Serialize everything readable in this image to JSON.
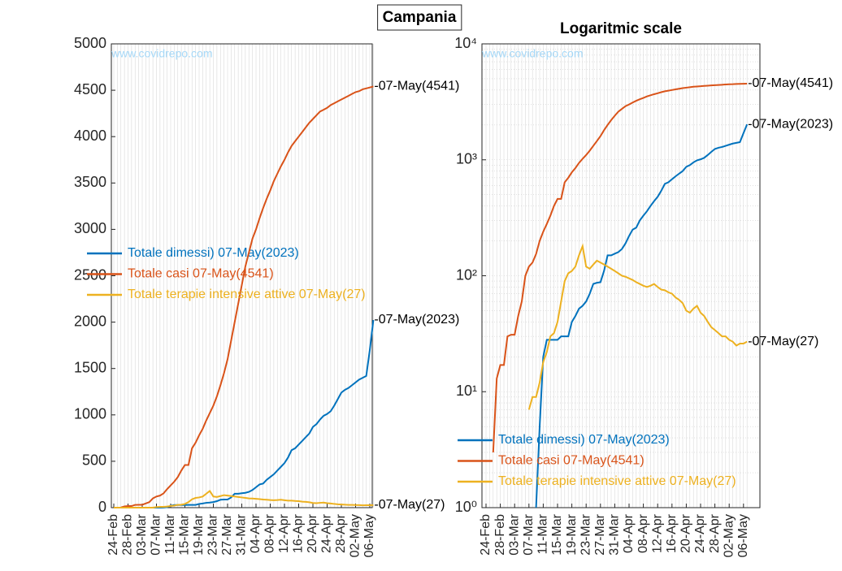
{
  "chart_data": [
    {
      "type": "line",
      "title": "Campania",
      "watermark": "www.covidrepo.com",
      "yscale": "linear",
      "legend": "center-left",
      "grid": true,
      "categories": [
        "24-Feb",
        null,
        null,
        null,
        "28-Feb",
        null,
        null,
        null,
        "03-Mar",
        null,
        null,
        null,
        "07-Mar",
        null,
        null,
        null,
        "11-Mar",
        null,
        null,
        null,
        "15-Mar",
        null,
        null,
        null,
        "19-Mar",
        null,
        null,
        null,
        "23-Mar",
        null,
        null,
        null,
        "27-Mar",
        null,
        null,
        null,
        "31-Mar",
        null,
        null,
        null,
        "04-Apr",
        null,
        null,
        null,
        "08-Apr",
        null,
        null,
        null,
        "12-Apr",
        null,
        null,
        null,
        "16-Apr",
        null,
        null,
        null,
        "20-Apr",
        null,
        null,
        null,
        "24-Apr",
        null,
        null,
        null,
        "28-Apr",
        null,
        null,
        null,
        "02-May",
        null,
        null,
        null,
        "06-May",
        null
      ],
      "ylim": [
        0,
        5000
      ],
      "yticks": [
        0,
        500,
        1000,
        1500,
        2000,
        2500,
        3000,
        3500,
        4000,
        4500,
        5000
      ],
      "series": [
        {
          "name": "Totale dimessi) 07-May(2023)",
          "end_label": "-07-May(2023)",
          "color": "#0072bd",
          "values": [
            0,
            0,
            0,
            0,
            0,
            0,
            0,
            0,
            0,
            0,
            0,
            0,
            0,
            0,
            1,
            5,
            20,
            28,
            28,
            28,
            28,
            30,
            30,
            30,
            40,
            45,
            52,
            55,
            60,
            70,
            85,
            87,
            88,
            110,
            150,
            150,
            155,
            160,
            170,
            190,
            220,
            250,
            260,
            300,
            330,
            360,
            400,
            440,
            480,
            540,
            620,
            640,
            680,
            720,
            760,
            800,
            870,
            900,
            950,
            990,
            1010,
            1040,
            1100,
            1170,
            1240,
            1270,
            1290,
            1320,
            1350,
            1380,
            1400,
            1420,
            1700,
            2023
          ]
        },
        {
          "name": "Totale casi 07-May(4541)",
          "end_label": "-07-May(4541)",
          "color": "#d95319",
          "values": [
            null,
            null,
            3,
            13,
            17,
            17,
            30,
            31,
            31,
            45,
            60,
            100,
            120,
            130,
            154,
            200,
            240,
            280,
            330,
            400,
            460,
            460,
            640,
            700,
            780,
            850,
            940,
            1020,
            1100,
            1200,
            1320,
            1450,
            1600,
            1800,
            2000,
            2200,
            2400,
            2600,
            2750,
            2900,
            3000,
            3120,
            3230,
            3330,
            3420,
            3520,
            3600,
            3680,
            3750,
            3830,
            3900,
            3950,
            4000,
            4050,
            4100,
            4150,
            4190,
            4230,
            4270,
            4290,
            4310,
            4340,
            4360,
            4380,
            4400,
            4420,
            4440,
            4460,
            4480,
            4490,
            4510,
            4520,
            4530,
            4541
          ]
        },
        {
          "name": "Totale terapie intensive attive 07-May(27)",
          "end_label": "-07-May(27)",
          "color": "#edb120",
          "values": [
            0,
            0,
            0,
            0,
            0,
            0,
            0,
            0,
            0,
            0,
            0,
            0,
            7,
            9,
            9,
            12,
            18,
            22,
            30,
            32,
            40,
            60,
            90,
            105,
            110,
            120,
            150,
            180,
            120,
            115,
            125,
            135,
            130,
            125,
            120,
            115,
            110,
            105,
            100,
            98,
            95,
            92,
            88,
            85,
            82,
            80,
            82,
            85,
            80,
            76,
            75,
            72,
            70,
            65,
            62,
            58,
            50,
            48,
            52,
            55,
            48,
            45,
            40,
            36,
            34,
            32,
            30,
            30,
            28,
            27,
            25,
            26,
            26,
            27
          ]
        }
      ]
    },
    {
      "type": "line",
      "title": "Logaritmic scale",
      "watermark": "www.covidrepo.com",
      "yscale": "log",
      "legend": "lower-left",
      "grid": true,
      "categories": [
        "24-Feb",
        null,
        null,
        null,
        "28-Feb",
        null,
        null,
        null,
        "03-Mar",
        null,
        null,
        null,
        "07-Mar",
        null,
        null,
        null,
        "11-Mar",
        null,
        null,
        null,
        "15-Mar",
        null,
        null,
        null,
        "19-Mar",
        null,
        null,
        null,
        "23-Mar",
        null,
        null,
        null,
        "27-Mar",
        null,
        null,
        null,
        "31-Mar",
        null,
        null,
        null,
        "04-Apr",
        null,
        null,
        null,
        "08-Apr",
        null,
        null,
        null,
        "12-Apr",
        null,
        null,
        null,
        "16-Apr",
        null,
        null,
        null,
        "20-Apr",
        null,
        null,
        null,
        "24-Apr",
        null,
        null,
        null,
        "28-Apr",
        null,
        null,
        null,
        "02-May",
        null,
        null,
        null,
        "06-May",
        null
      ],
      "ylim": [
        1,
        10000
      ],
      "yticks": [
        {
          "value": 1,
          "label": "10⁰"
        },
        {
          "value": 10,
          "label": "10¹"
        },
        {
          "value": 100,
          "label": "10²"
        },
        {
          "value": 1000,
          "label": "10³"
        },
        {
          "value": 10000,
          "label": "10⁴"
        }
      ],
      "series": [
        {
          "name": "Totale dimessi) 07-May(2023)",
          "end_label": "-07-May(2023)",
          "color": "#0072bd",
          "values": [
            0,
            0,
            0,
            0,
            0,
            0,
            0,
            0,
            0,
            0,
            0,
            0,
            0,
            0,
            1,
            5,
            20,
            28,
            28,
            28,
            28,
            30,
            30,
            30,
            40,
            45,
            52,
            55,
            60,
            70,
            85,
            87,
            88,
            110,
            150,
            150,
            155,
            160,
            170,
            190,
            220,
            250,
            260,
            300,
            330,
            360,
            400,
            440,
            480,
            540,
            620,
            640,
            680,
            720,
            760,
            800,
            870,
            900,
            950,
            990,
            1010,
            1040,
            1100,
            1170,
            1240,
            1270,
            1290,
            1320,
            1350,
            1380,
            1400,
            1420,
            1700,
            2023
          ]
        },
        {
          "name": "Totale casi 07-May(4541)",
          "end_label": "-07-May(4541)",
          "color": "#d95319",
          "values": [
            null,
            null,
            3,
            13,
            17,
            17,
            30,
            31,
            31,
            45,
            60,
            100,
            120,
            130,
            154,
            200,
            240,
            280,
            330,
            400,
            460,
            460,
            640,
            700,
            780,
            850,
            940,
            1020,
            1100,
            1200,
            1320,
            1450,
            1600,
            1800,
            2000,
            2200,
            2400,
            2600,
            2750,
            2900,
            3000,
            3120,
            3230,
            3330,
            3420,
            3520,
            3600,
            3680,
            3750,
            3830,
            3900,
            3950,
            4000,
            4050,
            4100,
            4150,
            4190,
            4230,
            4270,
            4290,
            4310,
            4340,
            4360,
            4380,
            4400,
            4420,
            4440,
            4460,
            4480,
            4490,
            4510,
            4520,
            4530,
            4541
          ]
        },
        {
          "name": "Totale terapie intensive attive 07-May(27)",
          "end_label": "-07-May(27)",
          "color": "#edb120",
          "values": [
            0,
            0,
            0,
            0,
            0,
            0,
            0,
            0,
            0,
            0,
            0,
            0,
            7,
            9,
            9,
            12,
            18,
            22,
            30,
            32,
            40,
            60,
            90,
            105,
            110,
            120,
            150,
            180,
            120,
            115,
            125,
            135,
            130,
            125,
            120,
            115,
            110,
            105,
            100,
            98,
            95,
            92,
            88,
            85,
            82,
            80,
            82,
            85,
            80,
            76,
            75,
            72,
            70,
            65,
            62,
            58,
            50,
            48,
            52,
            55,
            48,
            45,
            40,
            36,
            34,
            32,
            30,
            30,
            28,
            27,
            25,
            26,
            26,
            27
          ]
        }
      ]
    }
  ]
}
